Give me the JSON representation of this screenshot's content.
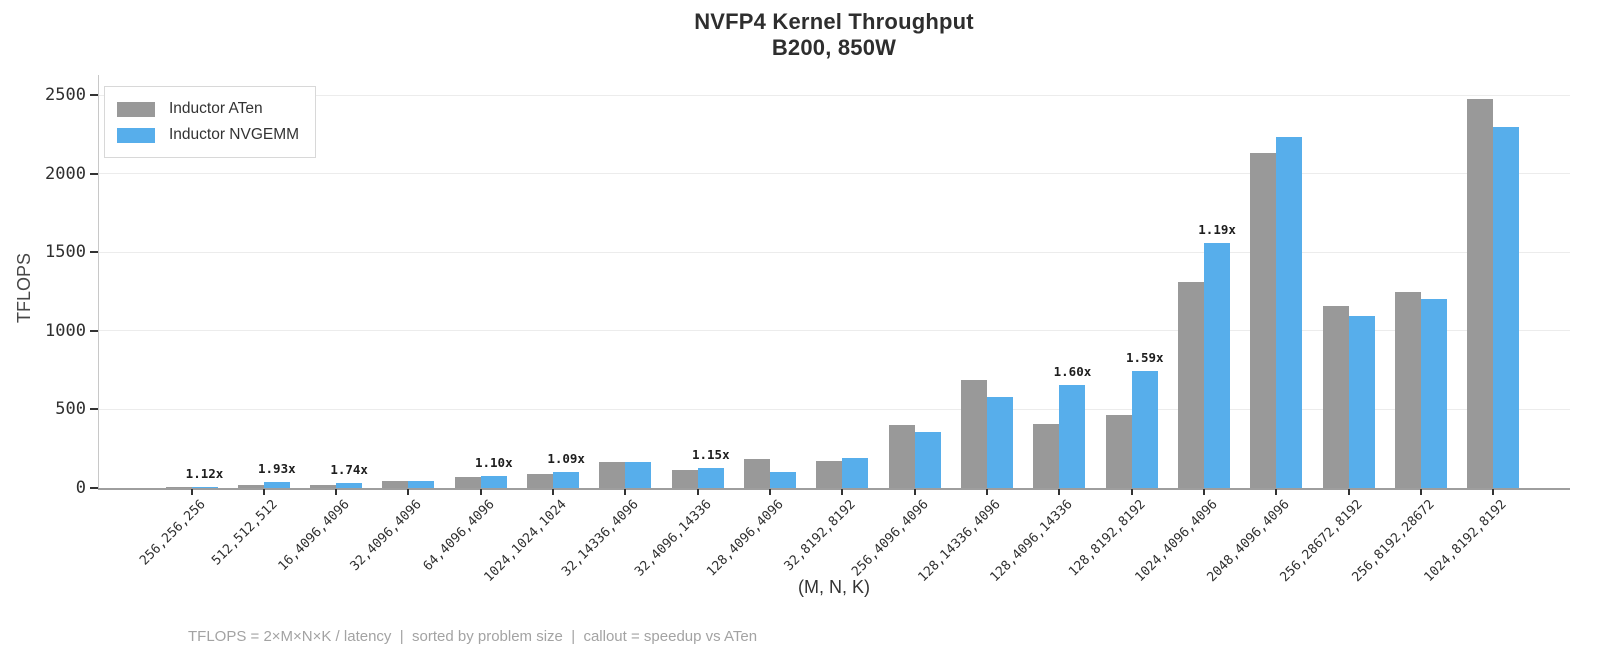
{
  "chart_data": {
    "type": "bar",
    "title": "NVFP4 Kernel Throughput",
    "subtitle": "B200, 850W",
    "xlabel": "(M, N, K)",
    "ylabel": "TFLOPS",
    "ylim": [
      0,
      2500
    ],
    "yticks": [
      0,
      500,
      1000,
      1500,
      2000,
      2500
    ],
    "grid": true,
    "legend_position": "upper-left",
    "categories": [
      "256,256,256",
      "512,512,512",
      "16,4096,4096",
      "32,4096,4096",
      "64,4096,4096",
      "1024,1024,1024",
      "32,14336,4096",
      "32,4096,14336",
      "128,4096,4096",
      "32,8192,8192",
      "256,4096,4096",
      "128,14336,4096",
      "128,4096,14336",
      "128,8192,8192",
      "1024,4096,4096",
      "2048,4096,4096",
      "256,28672,8192",
      "256,8192,28672",
      "1024,8192,8192"
    ],
    "series": [
      {
        "name": "Inductor ATen",
        "color": "#999999",
        "values": [
          7,
          18,
          17,
          45,
          70,
          92,
          163,
          112,
          185,
          174,
          400,
          685,
          410,
          467,
          1312,
          2130,
          1158,
          1250,
          2475
        ]
      },
      {
        "name": "Inductor NVGEMM",
        "color": "#57AEEB",
        "values": [
          8,
          35,
          30,
          47,
          77,
          100,
          167,
          129,
          104,
          189,
          356,
          576,
          656,
          743,
          1560,
          2235,
          1095,
          1200,
          2295
        ]
      }
    ],
    "callouts": [
      "1.12x",
      "1.93x",
      "1.74x",
      null,
      "1.10x",
      "1.09x",
      null,
      "1.15x",
      null,
      null,
      null,
      null,
      "1.60x",
      "1.59x",
      "1.19x",
      null,
      null,
      null,
      null
    ],
    "footnote": "TFLOPS = 2×M×N×K / latency  |  sorted by problem size  |  callout = speedup vs ATen"
  }
}
